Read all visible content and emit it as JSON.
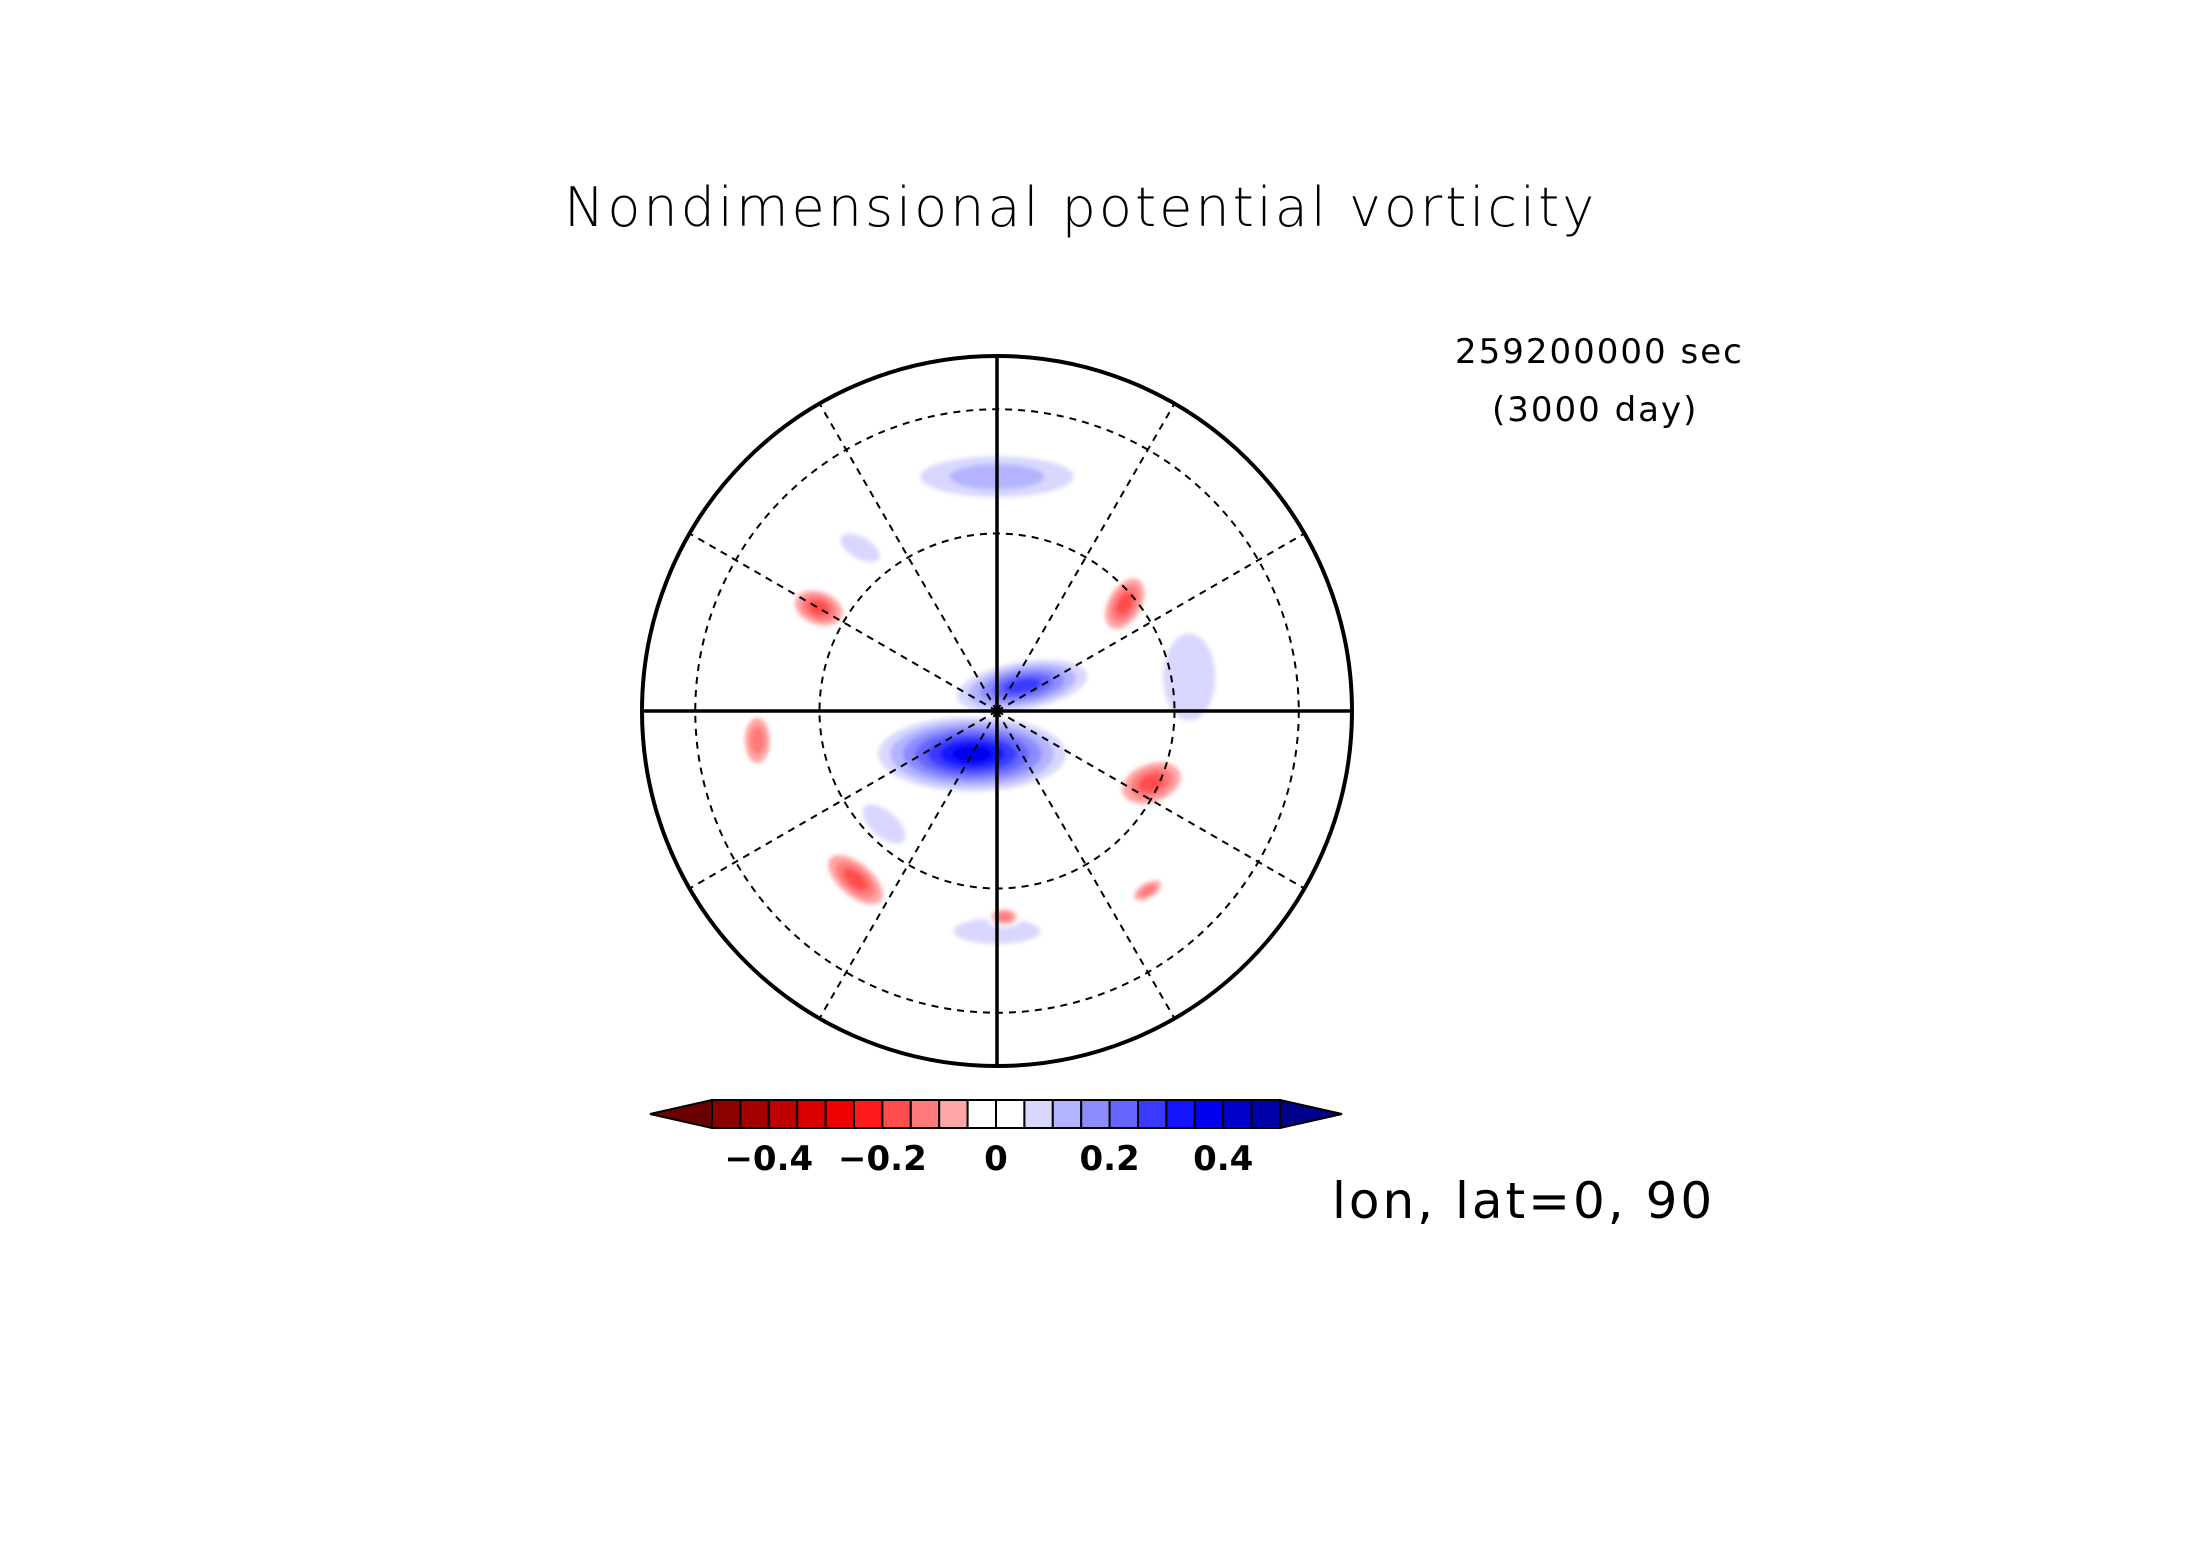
{
  "chart_data": {
    "type": "heatmap",
    "projection": "polar-stereographic",
    "title": "Nondimensional potential vorticity",
    "time": {
      "seconds": "259200000 sec",
      "days": "(3000 day)"
    },
    "projection_label": "lon, lat=0, 90",
    "grid": true,
    "colorbar": {
      "levels": [
        -0.55,
        -0.5,
        -0.45,
        -0.4,
        -0.35,
        -0.3,
        -0.25,
        -0.2,
        -0.15,
        -0.1,
        -0.05,
        0,
        0.05,
        0.1,
        0.15,
        0.2,
        0.25,
        0.3,
        0.35,
        0.4,
        0.45,
        0.5,
        0.55
      ],
      "colors": [
        "#6b0000",
        "#8b0000",
        "#a50000",
        "#c00000",
        "#d80000",
        "#ee0000",
        "#ff1a1a",
        "#ff4d4d",
        "#ff7a7a",
        "#ffa6a6",
        "#ffffff",
        "#ffffff",
        "#d8d8ff",
        "#b3b3ff",
        "#8c8cff",
        "#6666ff",
        "#3a3aff",
        "#1414ff",
        "#0000ee",
        "#0000cc",
        "#0000aa",
        "#00008b"
      ],
      "tick_values": [
        -0.4,
        -0.2,
        0,
        0.2,
        0.4
      ],
      "tick_labels": [
        "−0.4",
        "−0.2",
        "0",
        "0.2",
        "0.4"
      ],
      "extend": "both"
    },
    "field_features": [
      {
        "sign": "positive",
        "value": 0.5,
        "lon": 185,
        "dist": 0.1,
        "rx": 0.2,
        "ry": 0.07,
        "rot": 0
      },
      {
        "sign": "positive",
        "value": 0.4,
        "lon": 210,
        "dist": 0.14,
        "rx": 0.3,
        "ry": 0.12,
        "rot": 0
      },
      {
        "sign": "positive",
        "value": 0.3,
        "lon": 45,
        "dist": 0.1,
        "rx": 0.22,
        "ry": 0.08,
        "rot": -10
      },
      {
        "sign": "positive",
        "value": 0.15,
        "lon": 0,
        "dist": 0.66,
        "rx": 0.3,
        "ry": 0.08,
        "rot": 0
      },
      {
        "sign": "positive",
        "value": 0.1,
        "lon": 80,
        "dist": 0.55,
        "rx": 0.12,
        "ry": 0.2,
        "rot": 0
      },
      {
        "sign": "positive",
        "value": 0.1,
        "lon": 180,
        "dist": 0.62,
        "rx": 0.2,
        "ry": 0.06,
        "rot": 0
      },
      {
        "sign": "positive",
        "value": 0.1,
        "lon": 225,
        "dist": 0.45,
        "rx": 0.12,
        "ry": 0.06,
        "rot": 40
      },
      {
        "sign": "positive",
        "value": 0.1,
        "lon": 320,
        "dist": 0.6,
        "rx": 0.1,
        "ry": 0.05,
        "rot": 30
      },
      {
        "sign": "negative",
        "value": -0.2,
        "lon": 300,
        "dist": 0.58,
        "rx": 0.09,
        "ry": 0.06,
        "rot": 20
      },
      {
        "sign": "negative",
        "value": -0.2,
        "lon": 50,
        "dist": 0.47,
        "rx": 0.1,
        "ry": 0.06,
        "rot": -60
      },
      {
        "sign": "negative",
        "value": -0.2,
        "lon": 115,
        "dist": 0.48,
        "rx": 0.11,
        "ry": 0.07,
        "rot": -20
      },
      {
        "sign": "negative",
        "value": -0.2,
        "lon": 220,
        "dist": 0.62,
        "rx": 0.12,
        "ry": 0.06,
        "rot": 40
      },
      {
        "sign": "negative",
        "value": -0.15,
        "lon": 263,
        "dist": 0.68,
        "rx": 0.05,
        "ry": 0.09,
        "rot": 0
      },
      {
        "sign": "negative",
        "value": -0.15,
        "lon": 178,
        "dist": 0.58,
        "rx": 0.05,
        "ry": 0.03,
        "rot": 0
      },
      {
        "sign": "negative",
        "value": -0.15,
        "lon": 140,
        "dist": 0.66,
        "rx": 0.06,
        "ry": 0.03,
        "rot": -30
      }
    ]
  }
}
